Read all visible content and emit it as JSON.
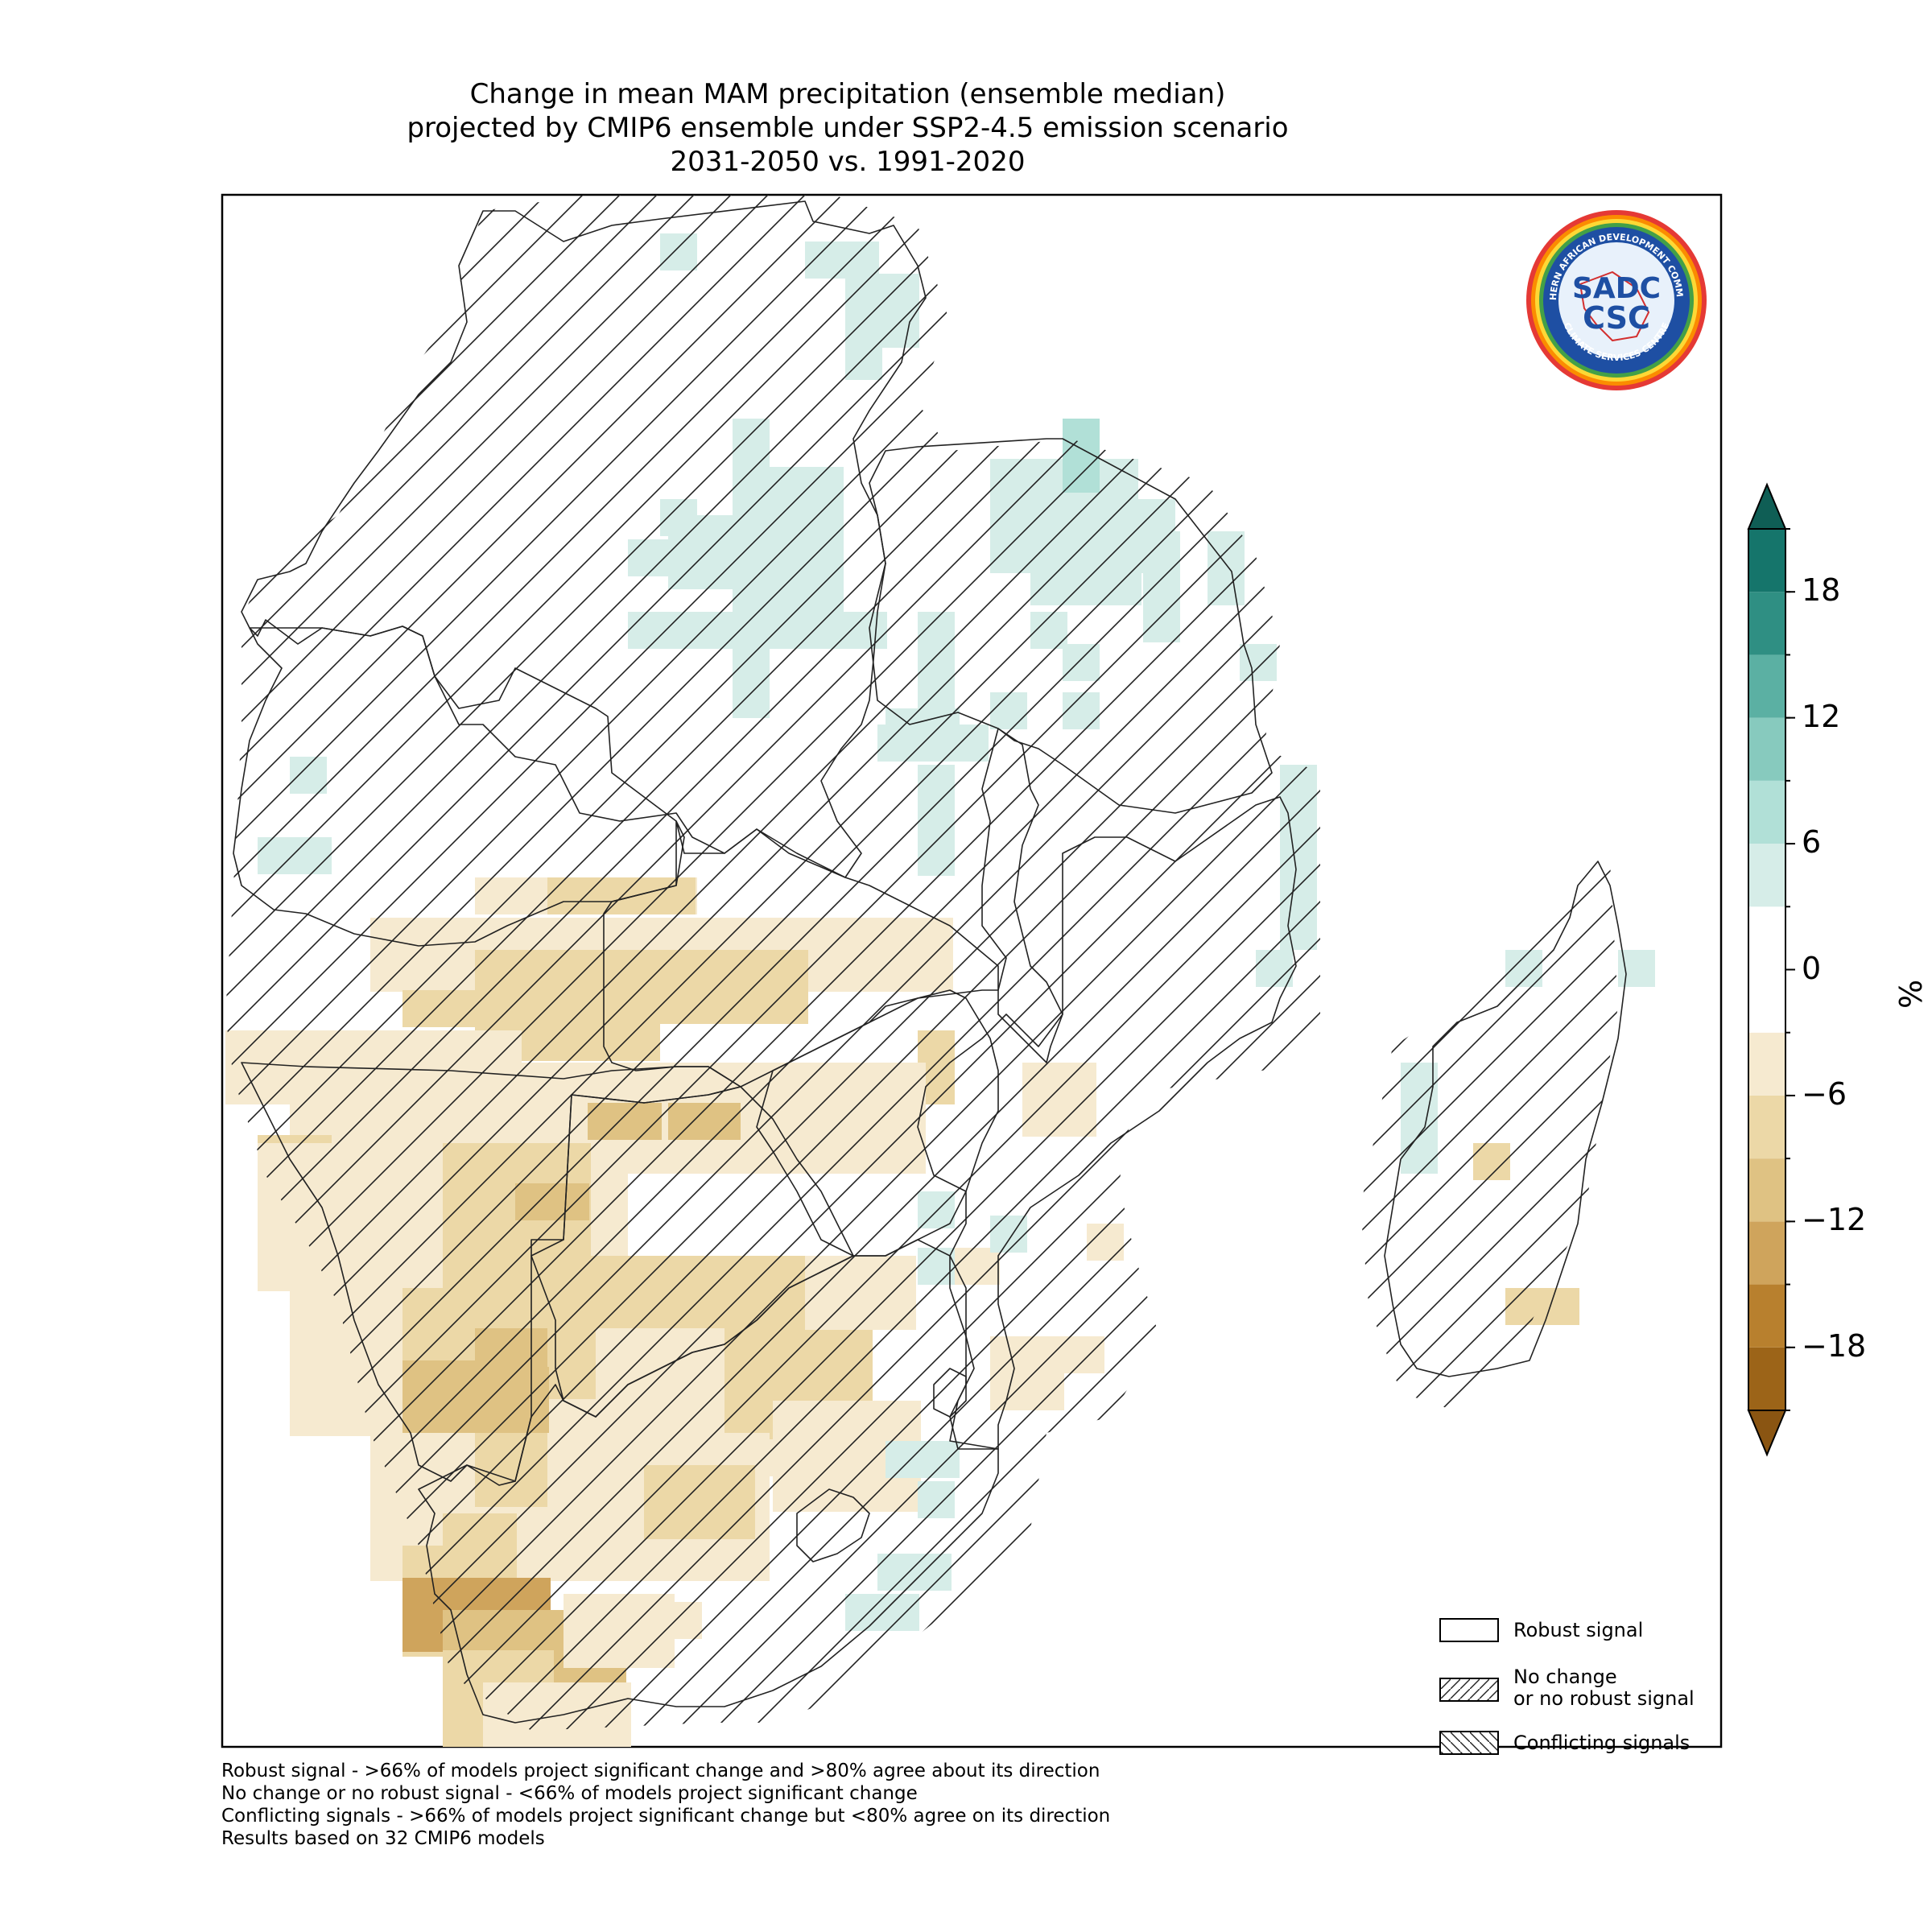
{
  "title": {
    "line1": "Change in mean MAM precipitation (ensemble median)",
    "line2": "projected by CMIP6 ensemble under SSP2-4.5 emission scenario",
    "line3": "2031-2050 vs. 1991-2020"
  },
  "logo": {
    "text_top": "SOUTHERN AFRICAN DEVELOPMENT COMMUNITY",
    "text_bottom": "CLIMATE SERVICES CENTRE",
    "mark_top": "SADC",
    "mark_bottom": "CSC"
  },
  "colorbar": {
    "unit": "%",
    "tick_labels": [
      "18",
      "12",
      "6",
      "0",
      "−6",
      "−12",
      "−18"
    ],
    "levels": [
      -21,
      -18,
      -15,
      -12,
      -9,
      -6,
      -3,
      3,
      6,
      9,
      12,
      15,
      18,
      21
    ],
    "colors": [
      "#9c6418",
      "#b8802e",
      "#cfa45c",
      "#dfc283",
      "#ecd8a7",
      "#f6ead0",
      "#ffffff",
      "#d6ede8",
      "#b1e0d7",
      "#87cabe",
      "#5bb0a3",
      "#2f8f83",
      "#15756b"
    ],
    "extend": "both"
  },
  "legend": {
    "items": [
      {
        "label": "Robust signal",
        "hatch": "none"
      },
      {
        "label": "No change\nor no robust signal",
        "hatch": "forward"
      },
      {
        "label": "Conflicting signals",
        "hatch": "backward"
      }
    ]
  },
  "footnotes": [
    "Robust signal - >66% of models project significant change and >80% agree about its direction",
    "No change or no robust signal - <66% of models project significant change",
    "Conflicting signals - >66% of models project significant change but <80% agree on its direction",
    "Results based on 32 CMIP6 models"
  ],
  "map": {
    "region": "Southern Africa (SADC)",
    "variable": "MAM precipitation change",
    "units": "%",
    "colors": {
      "dry_1": "#f6ead0",
      "dry_2": "#ecd8a7",
      "dry_3": "#dfc283",
      "dry_4": "#cfa45c",
      "wet_1": "#d6ede8",
      "wet_2": "#b1e0d7"
    }
  }
}
